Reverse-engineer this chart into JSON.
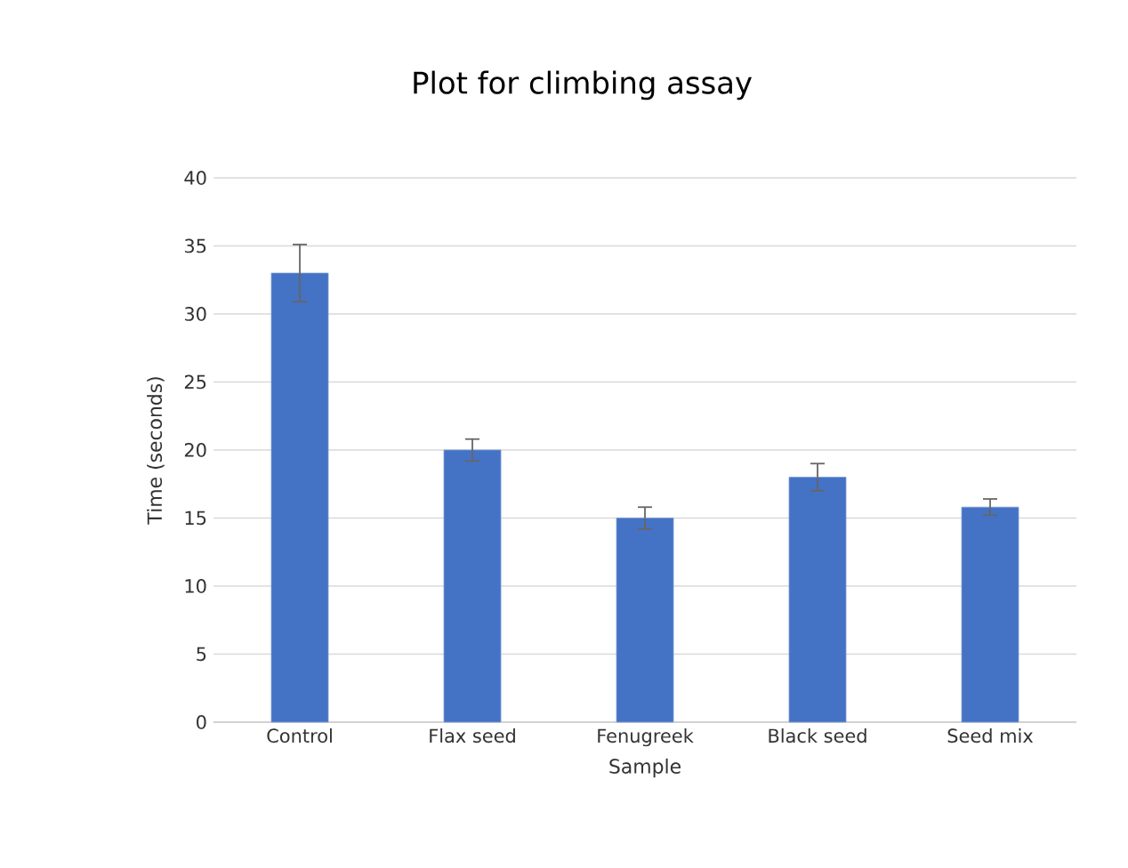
{
  "chart_data": {
    "type": "bar",
    "title": "Plot for climbing assay",
    "xlabel": "Sample",
    "ylabel": "Time (seconds)",
    "categories": [
      "Control",
      "Flax seed",
      "Fenugreek",
      "Black seed",
      "Seed mix"
    ],
    "values": [
      33,
      20,
      15,
      18,
      15.8
    ],
    "errors": [
      2.1,
      0.8,
      0.8,
      1.0,
      0.6
    ],
    "color": "#4472c4",
    "ylim": [
      0,
      40
    ],
    "yticks": [
      0,
      5,
      10,
      15,
      20,
      25,
      30,
      35,
      40
    ],
    "grid": "y"
  }
}
